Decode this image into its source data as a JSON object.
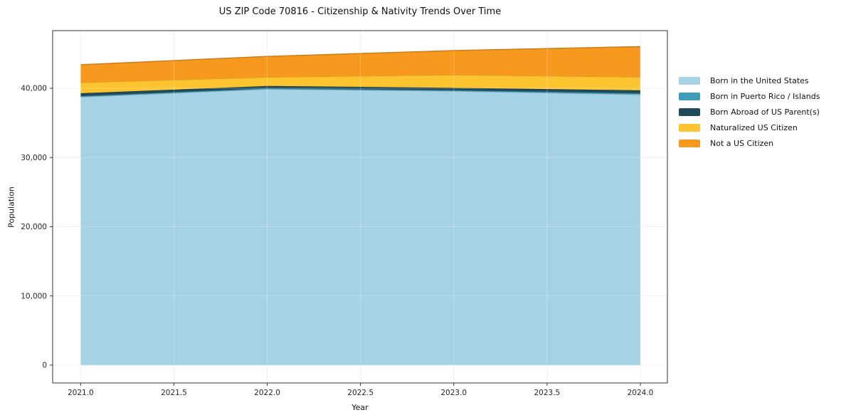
{
  "chart_data": {
    "type": "area",
    "stacked": true,
    "title": "US ZIP Code 70816 - Citizenship & Nativity Trends Over Time",
    "xlabel": "Year",
    "ylabel": "Population",
    "x": [
      2021,
      2022,
      2023,
      2024
    ],
    "series": [
      {
        "name": "Born in the United States",
        "color": "#A6D2E6",
        "values": [
          38750,
          39880,
          39600,
          39100
        ]
      },
      {
        "name": "Born in Puerto Rico / Islands",
        "color": "#3D9DB8",
        "values": [
          130,
          120,
          120,
          180
        ]
      },
      {
        "name": "Born Abroad of US Parent(s)",
        "color": "#1E4A5A",
        "values": [
          400,
          340,
          350,
          420
        ]
      },
      {
        "name": "Naturalized US Citizen",
        "color": "#FDC42F",
        "values": [
          1550,
          1280,
          1880,
          1930
        ]
      },
      {
        "name": "Not a US Citizen",
        "color": "#F8991F",
        "values": [
          2570,
          2980,
          3500,
          4390
        ]
      }
    ],
    "x_ticks": {
      "values": [
        2021.0,
        2021.5,
        2022.0,
        2022.5,
        2023.0,
        2023.5,
        2024.0
      ],
      "labels": [
        "2021.0",
        "2021.5",
        "2022.0",
        "2022.5",
        "2023.0",
        "2023.5",
        "2024.0"
      ]
    },
    "y_ticks": {
      "values": [
        0,
        10000,
        20000,
        30000,
        40000
      ],
      "labels": [
        "0",
        "10,000",
        "20,000",
        "30,000",
        "40,000"
      ]
    },
    "xlim": [
      2020.85,
      2024.145
    ],
    "ylim": [
      -2570,
      48330
    ],
    "grid": true,
    "legend_position": "right",
    "frame_color": "#333333",
    "gridline_color": "#EBEBEB"
  }
}
